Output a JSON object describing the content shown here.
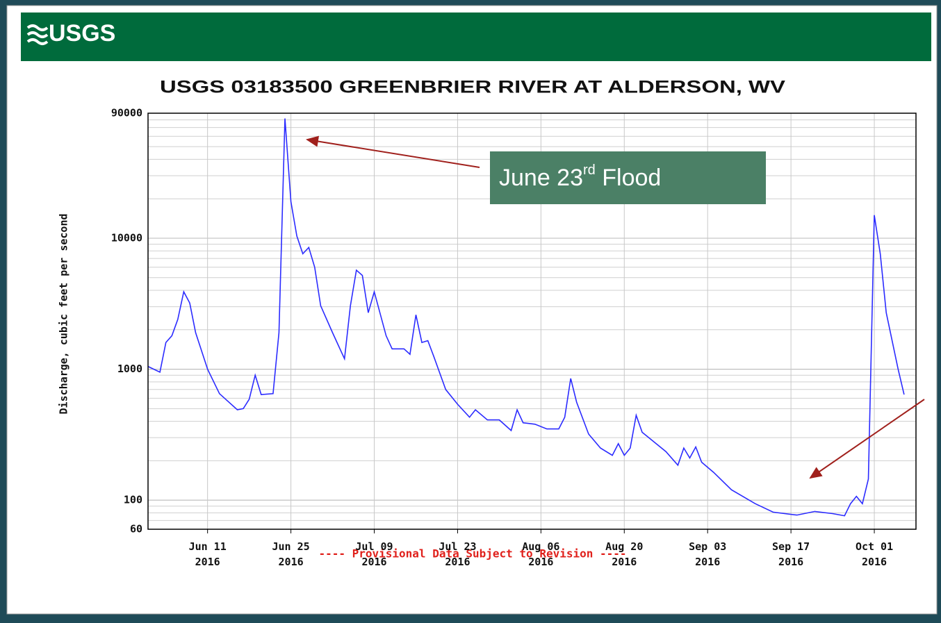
{
  "header": {
    "logo": "USGS"
  },
  "chart_data": {
    "type": "line",
    "title": "USGS 03183500 GREENBRIER RIVER AT ALDERSON, WV",
    "y_label": "Discharge, cubic feet per second",
    "footer": "---- Provisional Data Subject to Revision ----",
    "log_y": true,
    "grid": true,
    "color": "#2b2bff",
    "xlim": [
      "2016-06-01",
      "2016-10-08"
    ],
    "xticks": [
      {
        "value": "2016-06-11",
        "label": "Jun 11 2016"
      },
      {
        "value": "2016-06-25",
        "label": "Jun 25 2016"
      },
      {
        "value": "2016-07-09",
        "label": "Jul 09 2016"
      },
      {
        "value": "2016-07-23",
        "label": "Jul 23 2016"
      },
      {
        "value": "2016-08-06",
        "label": "Aug 06 2016"
      },
      {
        "value": "2016-08-20",
        "label": "Aug 20 2016"
      },
      {
        "value": "2016-09-03",
        "label": "Sep 03 2016"
      },
      {
        "value": "2016-09-17",
        "label": "Sep 17 2016"
      },
      {
        "value": "2016-10-01",
        "label": "Oct 01 2016"
      }
    ],
    "ylim": [
      60,
      90000
    ],
    "yticks": [
      60,
      100,
      1000,
      10000,
      90000
    ],
    "x": [
      "2016-06-01",
      "2016-06-03",
      "2016-06-04",
      "2016-06-05",
      "2016-06-06",
      "2016-06-07",
      "2016-06-08",
      "2016-06-09",
      "2016-06-11",
      "2016-06-13",
      "2016-06-16",
      "2016-06-17",
      "2016-06-18",
      "2016-06-19",
      "2016-06-20",
      "2016-06-22",
      "2016-06-23",
      "2016-06-24",
      "2016-06-25",
      "2016-06-26",
      "2016-06-27",
      "2016-06-28",
      "2016-06-29",
      "2016-06-30",
      "2016-07-02",
      "2016-07-04",
      "2016-07-05",
      "2016-07-06",
      "2016-07-07",
      "2016-07-08",
      "2016-07-09",
      "2016-07-11",
      "2016-07-12",
      "2016-07-14",
      "2016-07-15",
      "2016-07-16",
      "2016-07-17",
      "2016-07-18",
      "2016-07-19",
      "2016-07-21",
      "2016-07-23",
      "2016-07-25",
      "2016-07-26",
      "2016-07-28",
      "2016-07-30",
      "2016-08-01",
      "2016-08-02",
      "2016-08-03",
      "2016-08-05",
      "2016-08-07",
      "2016-08-09",
      "2016-08-10",
      "2016-08-11",
      "2016-08-12",
      "2016-08-14",
      "2016-08-16",
      "2016-08-18",
      "2016-08-19",
      "2016-08-20",
      "2016-08-21",
      "2016-08-22",
      "2016-08-23",
      "2016-08-27",
      "2016-08-29",
      "2016-08-30",
      "2016-08-31",
      "2016-09-01",
      "2016-09-02",
      "2016-09-04",
      "2016-09-07",
      "2016-09-11",
      "2016-09-14",
      "2016-09-18",
      "2016-09-21",
      "2016-09-24",
      "2016-09-26",
      "2016-09-27",
      "2016-09-28",
      "2016-09-29",
      "2016-09-30",
      "2016-10-01",
      "2016-10-02",
      "2016-10-03",
      "2016-10-05",
      "2016-10-06"
    ],
    "values": [
      1050,
      950,
      1600,
      1800,
      2400,
      3900,
      3200,
      1900,
      1000,
      650,
      490,
      500,
      590,
      900,
      640,
      650,
      1900,
      82000,
      19000,
      10400,
      7600,
      8500,
      6000,
      3050,
      1900,
      1200,
      3050,
      5700,
      5200,
      2700,
      3900,
      1800,
      1430,
      1430,
      1300,
      2600,
      1600,
      1650,
      1250,
      700,
      540,
      430,
      490,
      410,
      410,
      340,
      490,
      390,
      380,
      350,
      350,
      430,
      850,
      560,
      320,
      250,
      220,
      270,
      220,
      250,
      445,
      330,
      235,
      185,
      250,
      210,
      255,
      195,
      163,
      120,
      94,
      81,
      77,
      82,
      79,
      76,
      94,
      107,
      94,
      145,
      15000,
      7600,
      2700,
      1000,
      640
    ],
    "annotation": {
      "text": [
        "June 23",
        "rd",
        " Flood"
      ]
    }
  }
}
